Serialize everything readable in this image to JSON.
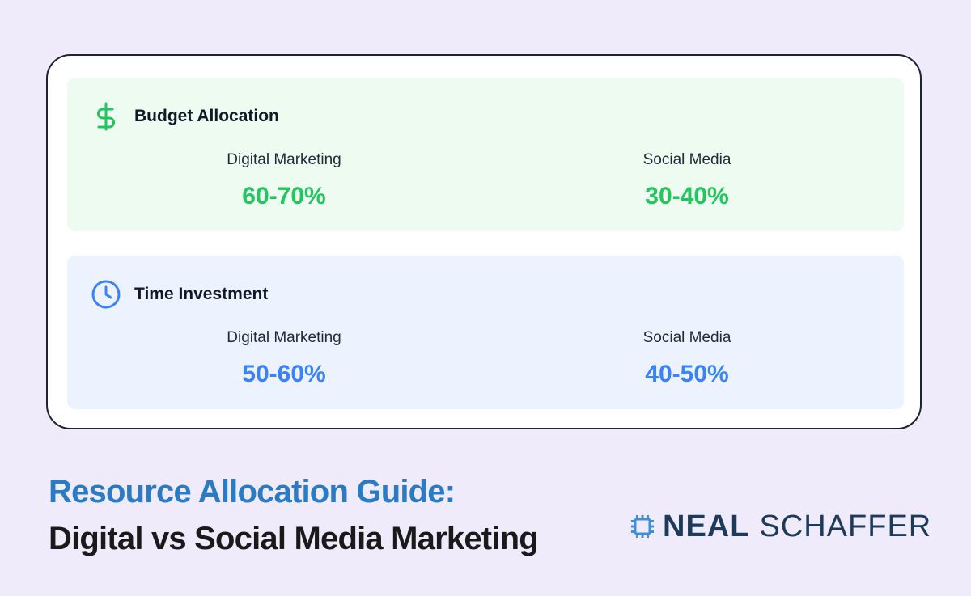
{
  "colors": {
    "background": "#f0ebfa",
    "budget_accent": "#22c55e",
    "time_accent": "#3b82f6",
    "title_blue": "#2a7bc4",
    "logo_navy": "#1e3a5a"
  },
  "budget": {
    "icon": "dollar-sign-icon",
    "title": "Budget Allocation",
    "digital_label": "Digital Marketing",
    "digital_value": "60-70%",
    "social_label": "Social Media",
    "social_value": "30-40%"
  },
  "time": {
    "icon": "clock-icon",
    "title": "Time Investment",
    "digital_label": "Digital Marketing",
    "digital_value": "50-60%",
    "social_label": "Social Media",
    "social_value": "40-50%"
  },
  "footer": {
    "title_line1": "Resource Allocation Guide:",
    "title_line2": "Digital vs Social Media Marketing"
  },
  "logo": {
    "word1": "NEAL",
    "word2": "SCHAFFER"
  }
}
